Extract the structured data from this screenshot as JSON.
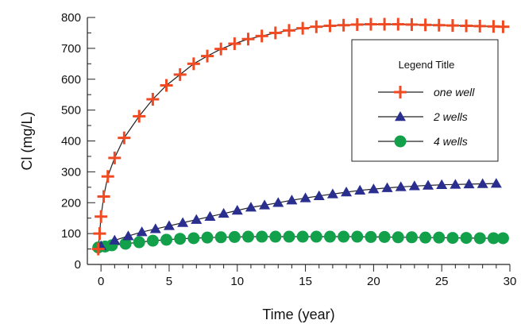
{
  "chart_data": {
    "type": "line",
    "title": "",
    "xlabel": "Time (year)",
    "ylabel": "Cl (mg/L)",
    "xlim": [
      -1,
      30
    ],
    "ylim": [
      0,
      800
    ],
    "xticks": [
      0,
      5,
      10,
      15,
      20,
      25,
      30
    ],
    "yticks": [
      0,
      100,
      200,
      300,
      400,
      500,
      600,
      700,
      800
    ],
    "grid": false,
    "legend": {
      "title": "Legend Title",
      "placement": "top-right"
    },
    "series": [
      {
        "name": "one well",
        "color": "#f04a23",
        "marker": "cross",
        "x": [
          -0.2,
          -0.1,
          0,
          0.2,
          0.5,
          1,
          1.7,
          2.8,
          3.8,
          4.8,
          5.8,
          6.8,
          7.8,
          8.8,
          9.8,
          10.8,
          11.8,
          12.8,
          13.8,
          14.8,
          15.8,
          16.8,
          17.8,
          18.8,
          19.8,
          20.8,
          21.8,
          22.8,
          23.8,
          24.8,
          25.8,
          26.8,
          27.8,
          28.8,
          29.5
        ],
        "y": [
          50,
          100,
          155,
          220,
          285,
          345,
          410,
          480,
          535,
          580,
          615,
          650,
          675,
          698,
          715,
          730,
          740,
          750,
          758,
          765,
          770,
          773,
          775,
          777,
          778,
          778,
          778,
          777,
          776,
          775,
          774,
          773,
          772,
          771,
          770
        ]
      },
      {
        "name": "2 wells",
        "color": "#2a2f8f",
        "marker": "triangle",
        "x": [
          0,
          1,
          2,
          3,
          4,
          5,
          6,
          7,
          8,
          9,
          10,
          11,
          12,
          13,
          14,
          15,
          16,
          17,
          18,
          19,
          20,
          21,
          22,
          23,
          24,
          25,
          26,
          27,
          28,
          29
        ],
        "y": [
          60,
          78,
          92,
          105,
          115,
          125,
          135,
          145,
          155,
          165,
          175,
          185,
          192,
          200,
          208,
          215,
          222,
          228,
          234,
          240,
          244,
          248,
          251,
          254,
          256,
          258,
          259,
          260,
          261,
          262
        ]
      },
      {
        "name": "4 wells",
        "color": "#12a04a",
        "marker": "circle",
        "x": [
          -0.2,
          0.3,
          0.8,
          1.8,
          2.8,
          3.8,
          4.8,
          5.8,
          6.8,
          7.8,
          8.8,
          9.8,
          10.8,
          11.8,
          12.8,
          13.8,
          14.8,
          15.8,
          16.8,
          17.8,
          18.8,
          19.8,
          20.8,
          21.8,
          22.8,
          23.8,
          24.8,
          25.8,
          26.8,
          27.8,
          28.8,
          29.5
        ],
        "y": [
          55,
          58,
          62,
          67,
          72,
          77,
          80,
          83,
          85,
          87,
          88,
          89,
          90,
          90,
          90,
          90,
          90,
          90,
          90,
          90,
          90,
          89,
          89,
          88,
          88,
          87,
          87,
          86,
          86,
          85,
          85,
          85
        ]
      }
    ]
  }
}
